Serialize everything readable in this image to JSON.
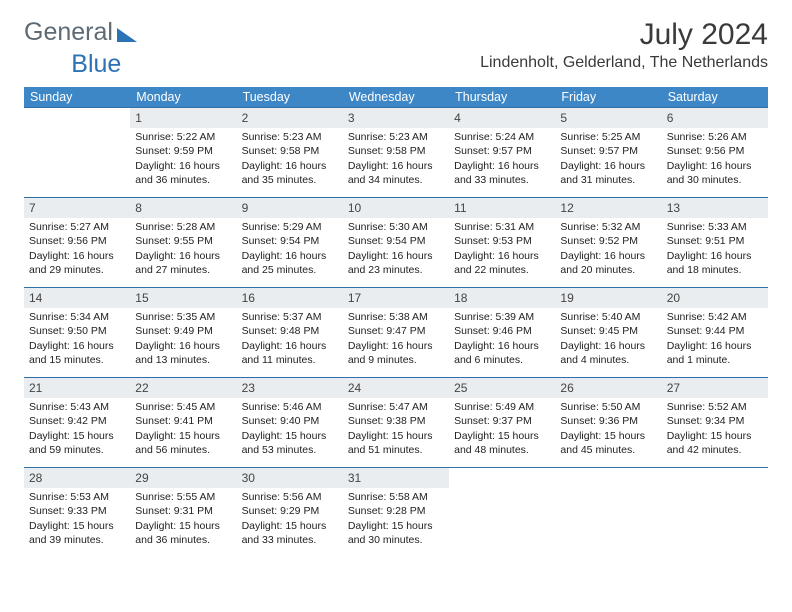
{
  "brand": {
    "part1": "General",
    "part2": "Blue"
  },
  "header": {
    "title": "July 2024",
    "location": "Lindenholt, Gelderland, The Netherlands"
  },
  "colors": {
    "header_bg": "#3d87c7",
    "header_text": "#ffffff",
    "daynum_bg": "#e9edef",
    "rule": "#2f6fa8",
    "brand_gray": "#5e6a74",
    "brand_blue": "#2b73b6"
  },
  "weekdays": [
    "Sunday",
    "Monday",
    "Tuesday",
    "Wednesday",
    "Thursday",
    "Friday",
    "Saturday"
  ],
  "weeks": [
    [
      {
        "n": "",
        "sunrise": "",
        "sunset": "",
        "daylight": "",
        "empty": true
      },
      {
        "n": "1",
        "sunrise": "Sunrise: 5:22 AM",
        "sunset": "Sunset: 9:59 PM",
        "daylight": "Daylight: 16 hours and 36 minutes."
      },
      {
        "n": "2",
        "sunrise": "Sunrise: 5:23 AM",
        "sunset": "Sunset: 9:58 PM",
        "daylight": "Daylight: 16 hours and 35 minutes."
      },
      {
        "n": "3",
        "sunrise": "Sunrise: 5:23 AM",
        "sunset": "Sunset: 9:58 PM",
        "daylight": "Daylight: 16 hours and 34 minutes."
      },
      {
        "n": "4",
        "sunrise": "Sunrise: 5:24 AM",
        "sunset": "Sunset: 9:57 PM",
        "daylight": "Daylight: 16 hours and 33 minutes."
      },
      {
        "n": "5",
        "sunrise": "Sunrise: 5:25 AM",
        "sunset": "Sunset: 9:57 PM",
        "daylight": "Daylight: 16 hours and 31 minutes."
      },
      {
        "n": "6",
        "sunrise": "Sunrise: 5:26 AM",
        "sunset": "Sunset: 9:56 PM",
        "daylight": "Daylight: 16 hours and 30 minutes."
      }
    ],
    [
      {
        "n": "7",
        "sunrise": "Sunrise: 5:27 AM",
        "sunset": "Sunset: 9:56 PM",
        "daylight": "Daylight: 16 hours and 29 minutes."
      },
      {
        "n": "8",
        "sunrise": "Sunrise: 5:28 AM",
        "sunset": "Sunset: 9:55 PM",
        "daylight": "Daylight: 16 hours and 27 minutes."
      },
      {
        "n": "9",
        "sunrise": "Sunrise: 5:29 AM",
        "sunset": "Sunset: 9:54 PM",
        "daylight": "Daylight: 16 hours and 25 minutes."
      },
      {
        "n": "10",
        "sunrise": "Sunrise: 5:30 AM",
        "sunset": "Sunset: 9:54 PM",
        "daylight": "Daylight: 16 hours and 23 minutes."
      },
      {
        "n": "11",
        "sunrise": "Sunrise: 5:31 AM",
        "sunset": "Sunset: 9:53 PM",
        "daylight": "Daylight: 16 hours and 22 minutes."
      },
      {
        "n": "12",
        "sunrise": "Sunrise: 5:32 AM",
        "sunset": "Sunset: 9:52 PM",
        "daylight": "Daylight: 16 hours and 20 minutes."
      },
      {
        "n": "13",
        "sunrise": "Sunrise: 5:33 AM",
        "sunset": "Sunset: 9:51 PM",
        "daylight": "Daylight: 16 hours and 18 minutes."
      }
    ],
    [
      {
        "n": "14",
        "sunrise": "Sunrise: 5:34 AM",
        "sunset": "Sunset: 9:50 PM",
        "daylight": "Daylight: 16 hours and 15 minutes."
      },
      {
        "n": "15",
        "sunrise": "Sunrise: 5:35 AM",
        "sunset": "Sunset: 9:49 PM",
        "daylight": "Daylight: 16 hours and 13 minutes."
      },
      {
        "n": "16",
        "sunrise": "Sunrise: 5:37 AM",
        "sunset": "Sunset: 9:48 PM",
        "daylight": "Daylight: 16 hours and 11 minutes."
      },
      {
        "n": "17",
        "sunrise": "Sunrise: 5:38 AM",
        "sunset": "Sunset: 9:47 PM",
        "daylight": "Daylight: 16 hours and 9 minutes."
      },
      {
        "n": "18",
        "sunrise": "Sunrise: 5:39 AM",
        "sunset": "Sunset: 9:46 PM",
        "daylight": "Daylight: 16 hours and 6 minutes."
      },
      {
        "n": "19",
        "sunrise": "Sunrise: 5:40 AM",
        "sunset": "Sunset: 9:45 PM",
        "daylight": "Daylight: 16 hours and 4 minutes."
      },
      {
        "n": "20",
        "sunrise": "Sunrise: 5:42 AM",
        "sunset": "Sunset: 9:44 PM",
        "daylight": "Daylight: 16 hours and 1 minute."
      }
    ],
    [
      {
        "n": "21",
        "sunrise": "Sunrise: 5:43 AM",
        "sunset": "Sunset: 9:42 PM",
        "daylight": "Daylight: 15 hours and 59 minutes."
      },
      {
        "n": "22",
        "sunrise": "Sunrise: 5:45 AM",
        "sunset": "Sunset: 9:41 PM",
        "daylight": "Daylight: 15 hours and 56 minutes."
      },
      {
        "n": "23",
        "sunrise": "Sunrise: 5:46 AM",
        "sunset": "Sunset: 9:40 PM",
        "daylight": "Daylight: 15 hours and 53 minutes."
      },
      {
        "n": "24",
        "sunrise": "Sunrise: 5:47 AM",
        "sunset": "Sunset: 9:38 PM",
        "daylight": "Daylight: 15 hours and 51 minutes."
      },
      {
        "n": "25",
        "sunrise": "Sunrise: 5:49 AM",
        "sunset": "Sunset: 9:37 PM",
        "daylight": "Daylight: 15 hours and 48 minutes."
      },
      {
        "n": "26",
        "sunrise": "Sunrise: 5:50 AM",
        "sunset": "Sunset: 9:36 PM",
        "daylight": "Daylight: 15 hours and 45 minutes."
      },
      {
        "n": "27",
        "sunrise": "Sunrise: 5:52 AM",
        "sunset": "Sunset: 9:34 PM",
        "daylight": "Daylight: 15 hours and 42 minutes."
      }
    ],
    [
      {
        "n": "28",
        "sunrise": "Sunrise: 5:53 AM",
        "sunset": "Sunset: 9:33 PM",
        "daylight": "Daylight: 15 hours and 39 minutes."
      },
      {
        "n": "29",
        "sunrise": "Sunrise: 5:55 AM",
        "sunset": "Sunset: 9:31 PM",
        "daylight": "Daylight: 15 hours and 36 minutes."
      },
      {
        "n": "30",
        "sunrise": "Sunrise: 5:56 AM",
        "sunset": "Sunset: 9:29 PM",
        "daylight": "Daylight: 15 hours and 33 minutes."
      },
      {
        "n": "31",
        "sunrise": "Sunrise: 5:58 AM",
        "sunset": "Sunset: 9:28 PM",
        "daylight": "Daylight: 15 hours and 30 minutes."
      },
      {
        "n": "",
        "sunrise": "",
        "sunset": "",
        "daylight": "",
        "empty": true
      },
      {
        "n": "",
        "sunrise": "",
        "sunset": "",
        "daylight": "",
        "empty": true
      },
      {
        "n": "",
        "sunrise": "",
        "sunset": "",
        "daylight": "",
        "empty": true
      }
    ]
  ]
}
